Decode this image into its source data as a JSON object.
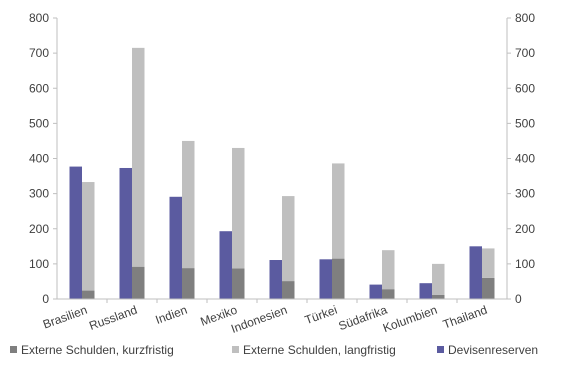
{
  "chart_data": {
    "type": "bar",
    "stacked_series": [
      "Externe Schulden, kurzfristig",
      "Externe Schulden, langfristig"
    ],
    "categories": [
      "Brasilien",
      "Russland",
      "Indien",
      "Mexiko",
      "Indonesien",
      "Türkei",
      "Südafrika",
      "Kolumbien",
      "Thailand"
    ],
    "series": [
      {
        "name": "Externe Schulden, kurzfristig",
        "color": "#7f7f7f",
        "values": [
          24,
          92,
          88,
          87,
          51,
          115,
          28,
          12,
          60
        ]
      },
      {
        "name": "Externe Schulden, langfristig",
        "color": "#bfbfbf",
        "values": [
          309,
          623,
          362,
          343,
          242,
          271,
          111,
          88,
          84
        ]
      },
      {
        "name": "Devisenreserven",
        "color": "#5b5ba0",
        "values": [
          377,
          373,
          291,
          193,
          111,
          113,
          41,
          45,
          150
        ]
      }
    ],
    "ylim": [
      0,
      800
    ],
    "yticks": [
      "0",
      "100",
      "200",
      "300",
      "400",
      "500",
      "600",
      "700",
      "800"
    ],
    "secondary_axis": true,
    "grid": false,
    "legend_position": "bottom"
  }
}
